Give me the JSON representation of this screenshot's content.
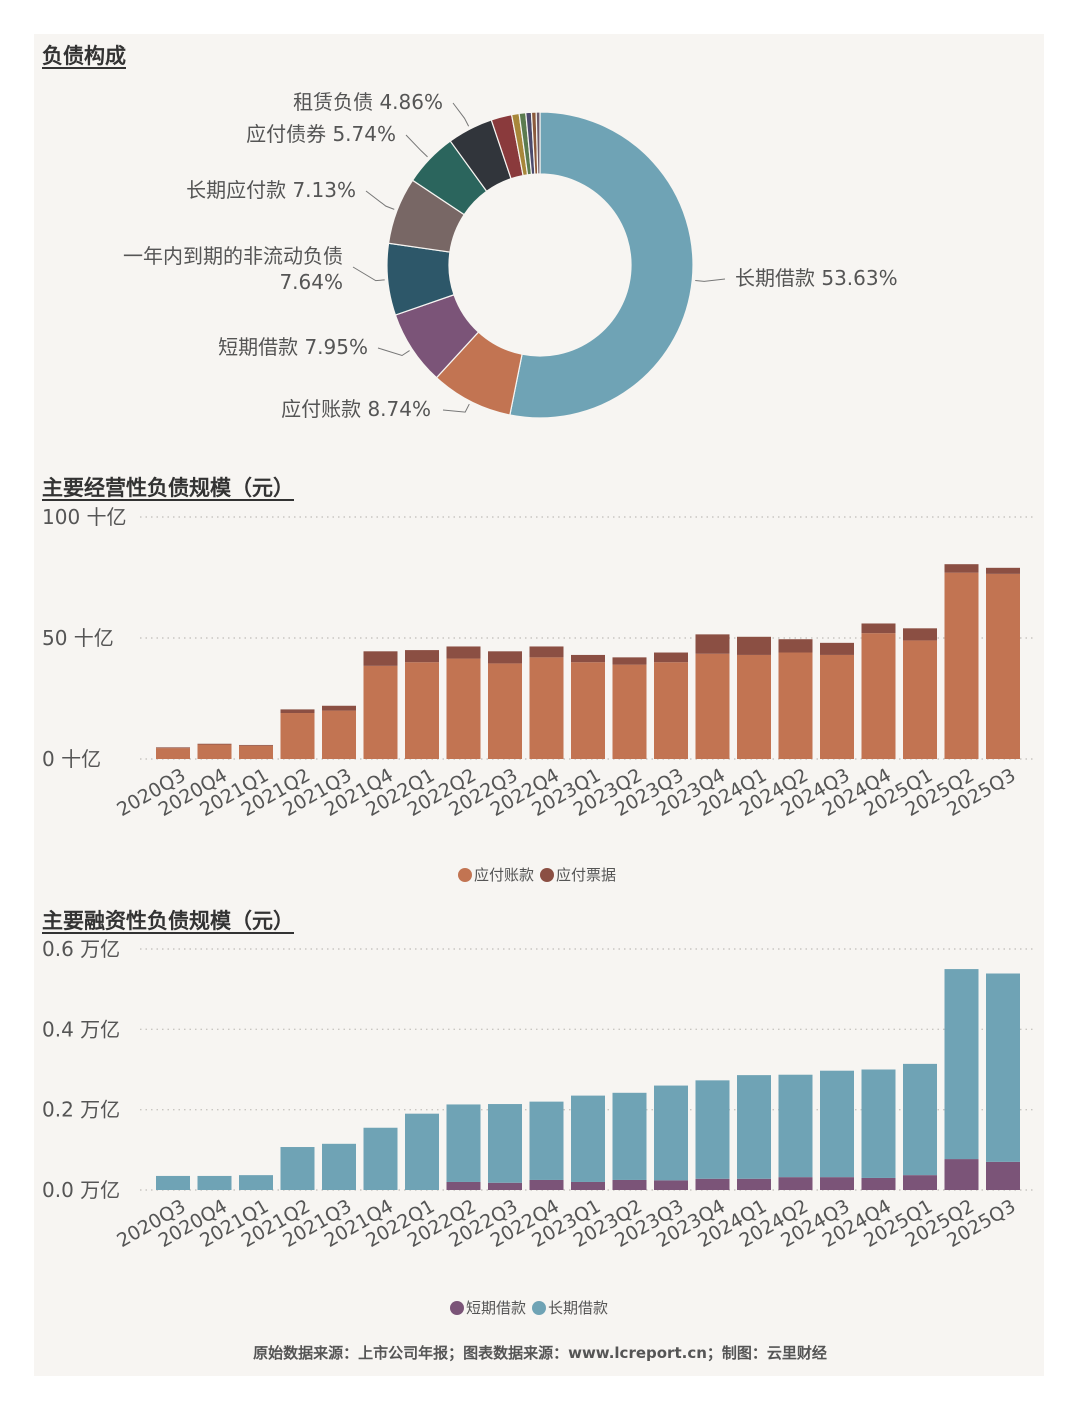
{
  "titles": {
    "composition": "负债构成",
    "operating": "主要经营性负债规模（元）",
    "financing": "主要融资性负债规模（元）"
  },
  "source_text": "原始数据来源：上市公司年报；图表数据来源：www.lcreport.cn；制图：云里财经",
  "chart_data": [
    {
      "type": "pie",
      "style": "donut",
      "slices": [
        {
          "name": "长期借款",
          "pct_label": "53.63%",
          "value": 53.63,
          "color": "#6fa3b5"
        },
        {
          "name": "应付账款",
          "pct_label": "8.74%",
          "value": 8.74,
          "color": "#c27452"
        },
        {
          "name": "短期借款",
          "pct_label": "7.95%",
          "value": 7.95,
          "color": "#7b5478"
        },
        {
          "name": "一年内到期的非流动负债",
          "pct_label": "7.64%",
          "value": 7.64,
          "color": "#2d5769"
        },
        {
          "name": "长期应付款",
          "pct_label": "7.13%",
          "value": 7.13,
          "color": "#786765"
        },
        {
          "name": "应付债券",
          "pct_label": "5.74%",
          "value": 5.74,
          "color": "#2b655d"
        },
        {
          "name": "租赁负债",
          "pct_label": "4.86%",
          "value": 4.86,
          "color": "#31353b"
        },
        {
          "name": "",
          "value": 2.2,
          "color": "#8a3a3c"
        },
        {
          "name": "",
          "value": 0.8,
          "color": "#a8873a"
        },
        {
          "name": "",
          "value": 0.7,
          "color": "#5b7b4f"
        },
        {
          "name": "",
          "value": 0.6,
          "color": "#4c4a6c"
        },
        {
          "name": "",
          "value": 0.5,
          "color": "#8b5a3c"
        },
        {
          "name": "",
          "value": 0.4,
          "color": "#6c5a6a"
        }
      ]
    },
    {
      "type": "bar",
      "stacked": true,
      "categories": [
        "2020Q3",
        "2020Q4",
        "2021Q1",
        "2021Q2",
        "2021Q3",
        "2021Q4",
        "2022Q1",
        "2022Q2",
        "2022Q3",
        "2022Q4",
        "2023Q1",
        "2023Q2",
        "2023Q3",
        "2023Q4",
        "2024Q1",
        "2024Q2",
        "2024Q3",
        "2024Q4",
        "2025Q1",
        "2025Q2",
        "2025Q3"
      ],
      "series": [
        {
          "name": "应付账款",
          "color": "#c27452",
          "values": [
            4.5,
            6,
            5.5,
            19,
            20,
            38.5,
            40,
            41.5,
            39.5,
            42,
            40,
            39,
            40,
            43.5,
            43,
            44,
            43,
            52,
            49,
            77,
            76.5
          ]
        },
        {
          "name": "应付票据",
          "color": "#8b4f43",
          "values": [
            0.3,
            0.3,
            0.3,
            1.5,
            2,
            6,
            5,
            5,
            5,
            4.5,
            3,
            3,
            4,
            8,
            7.5,
            5.5,
            5,
            4,
            5,
            3.5,
            2.5
          ]
        }
      ],
      "ylim": [
        0,
        100
      ],
      "yticks": [
        0,
        50,
        100
      ],
      "ytick_labels": [
        "0 十亿",
        "50 十亿",
        "100 十亿"
      ],
      "grid": true,
      "legend": "bottom"
    },
    {
      "type": "bar",
      "stacked": true,
      "categories": [
        "2020Q3",
        "2020Q4",
        "2021Q1",
        "2021Q2",
        "2021Q3",
        "2021Q4",
        "2022Q1",
        "2022Q2",
        "2022Q3",
        "2022Q4",
        "2023Q1",
        "2023Q2",
        "2023Q3",
        "2023Q4",
        "2024Q1",
        "2024Q2",
        "2024Q3",
        "2024Q4",
        "2025Q1",
        "2025Q2",
        "2025Q3"
      ],
      "series": [
        {
          "name": "短期借款",
          "color": "#7b5478",
          "values": [
            0,
            0,
            0,
            0,
            0,
            0,
            0,
            0.02,
            0.018,
            0.025,
            0.02,
            0.025,
            0.024,
            0.028,
            0.028,
            0.032,
            0.032,
            0.03,
            0.037,
            0.077,
            0.07
          ]
        },
        {
          "name": "长期借款",
          "color": "#6fa3b5",
          "values": [
            0.035,
            0.035,
            0.037,
            0.107,
            0.115,
            0.155,
            0.19,
            0.193,
            0.196,
            0.195,
            0.215,
            0.217,
            0.236,
            0.245,
            0.258,
            0.255,
            0.265,
            0.27,
            0.277,
            0.473,
            0.469
          ]
        }
      ],
      "ylim": [
        0,
        0.6
      ],
      "yticks": [
        0,
        0.2,
        0.4,
        0.6
      ],
      "ytick_labels": [
        "0.0 万亿",
        "0.2 万亿",
        "0.4 万亿",
        "0.6 万亿"
      ],
      "grid": true,
      "legend": "bottom"
    }
  ]
}
